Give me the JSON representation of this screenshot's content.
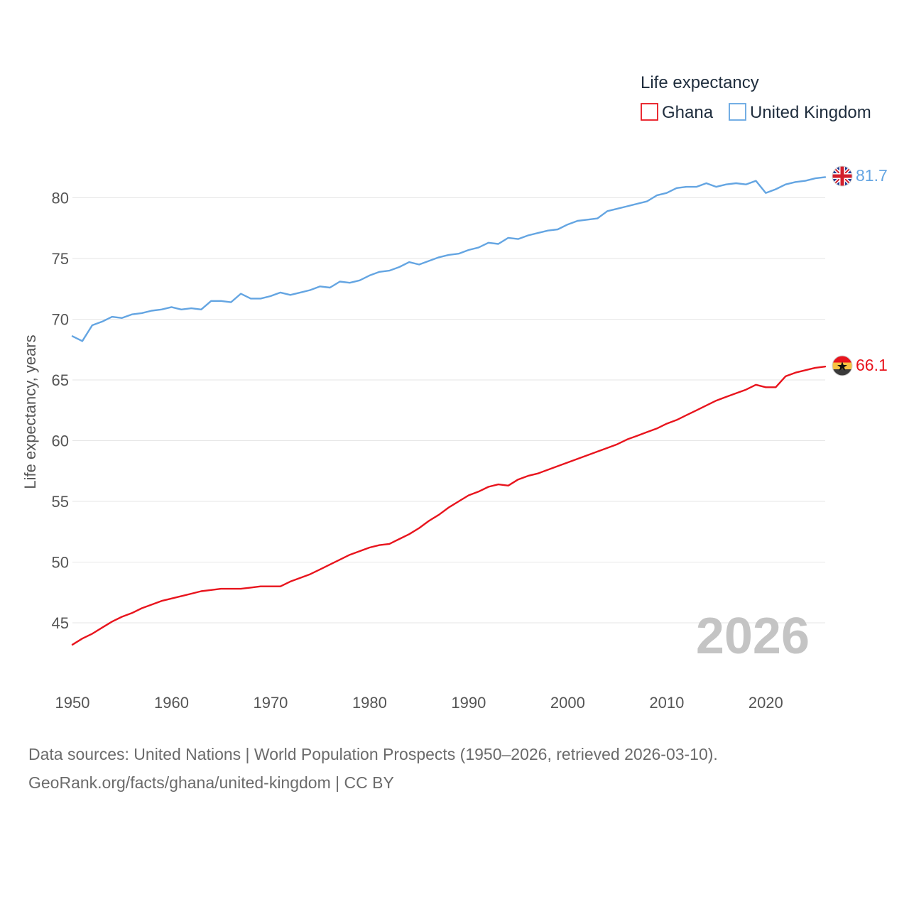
{
  "chart_data": {
    "type": "line",
    "legend_title": "Life expectancy",
    "ylabel": "Life expectancy, years",
    "xlabel": "",
    "year_stamp": "2026",
    "xlim": [
      1950,
      2026
    ],
    "ylim": [
      41,
      84
    ],
    "x_ticks": [
      1950,
      1960,
      1970,
      1980,
      1990,
      2000,
      2010,
      2020
    ],
    "y_ticks": [
      45,
      50,
      55,
      60,
      65,
      70,
      75,
      80
    ],
    "legend_position": "top-right",
    "x": [
      1950,
      1951,
      1952,
      1953,
      1954,
      1955,
      1956,
      1957,
      1958,
      1959,
      1960,
      1961,
      1962,
      1963,
      1964,
      1965,
      1966,
      1967,
      1968,
      1969,
      1970,
      1971,
      1972,
      1973,
      1974,
      1975,
      1976,
      1977,
      1978,
      1979,
      1980,
      1981,
      1982,
      1983,
      1984,
      1985,
      1986,
      1987,
      1988,
      1989,
      1990,
      1991,
      1992,
      1993,
      1994,
      1995,
      1996,
      1997,
      1998,
      1999,
      2000,
      2001,
      2002,
      2003,
      2004,
      2005,
      2006,
      2007,
      2008,
      2009,
      2010,
      2011,
      2012,
      2013,
      2014,
      2015,
      2016,
      2017,
      2018,
      2019,
      2020,
      2021,
      2022,
      2023,
      2024,
      2025,
      2026
    ],
    "series": [
      {
        "name": "Ghana",
        "color": "#e8141d",
        "end_label": "66.1",
        "flag": "ghana-flag",
        "values": [
          43.2,
          43.7,
          44.1,
          44.6,
          45.1,
          45.5,
          45.8,
          46.2,
          46.5,
          46.8,
          47.0,
          47.2,
          47.4,
          47.6,
          47.7,
          47.8,
          47.8,
          47.8,
          47.9,
          48.0,
          48.0,
          48.0,
          48.4,
          48.7,
          49.0,
          49.4,
          49.8,
          50.2,
          50.6,
          50.9,
          51.2,
          51.4,
          51.5,
          51.9,
          52.3,
          52.8,
          53.4,
          53.9,
          54.5,
          55.0,
          55.5,
          55.8,
          56.2,
          56.4,
          56.3,
          56.8,
          57.1,
          57.3,
          57.6,
          57.9,
          58.2,
          58.5,
          58.8,
          59.1,
          59.4,
          59.7,
          60.1,
          60.4,
          60.7,
          61.0,
          61.4,
          61.7,
          62.1,
          62.5,
          62.9,
          63.3,
          63.6,
          63.9,
          64.2,
          64.6,
          64.4,
          64.4,
          65.3,
          65.6,
          65.8,
          66.0,
          66.1
        ]
      },
      {
        "name": "United Kingdom",
        "color": "#64a5e2",
        "end_label": "81.7",
        "flag": "uk-flag",
        "values": [
          68.6,
          68.2,
          69.5,
          69.8,
          70.2,
          70.1,
          70.4,
          70.5,
          70.7,
          70.8,
          71.0,
          70.8,
          70.9,
          70.8,
          71.5,
          71.5,
          71.4,
          72.1,
          71.7,
          71.7,
          71.9,
          72.2,
          72.0,
          72.2,
          72.4,
          72.7,
          72.6,
          73.1,
          73.0,
          73.2,
          73.6,
          73.9,
          74.0,
          74.3,
          74.7,
          74.5,
          74.8,
          75.1,
          75.3,
          75.4,
          75.7,
          75.9,
          76.3,
          76.2,
          76.7,
          76.6,
          76.9,
          77.1,
          77.3,
          77.4,
          77.8,
          78.1,
          78.2,
          78.3,
          78.9,
          79.1,
          79.3,
          79.5,
          79.7,
          80.2,
          80.4,
          80.8,
          80.9,
          80.9,
          81.2,
          80.9,
          81.1,
          81.2,
          81.1,
          81.4,
          80.4,
          80.7,
          81.1,
          81.3,
          81.4,
          81.6,
          81.7
        ]
      }
    ]
  },
  "footer": {
    "line1": "Data sources: United Nations | World Population Prospects (1950–2026, retrieved 2026-03-10).",
    "line2": "GeoRank.org/facts/ghana/united-kingdom | CC BY"
  }
}
